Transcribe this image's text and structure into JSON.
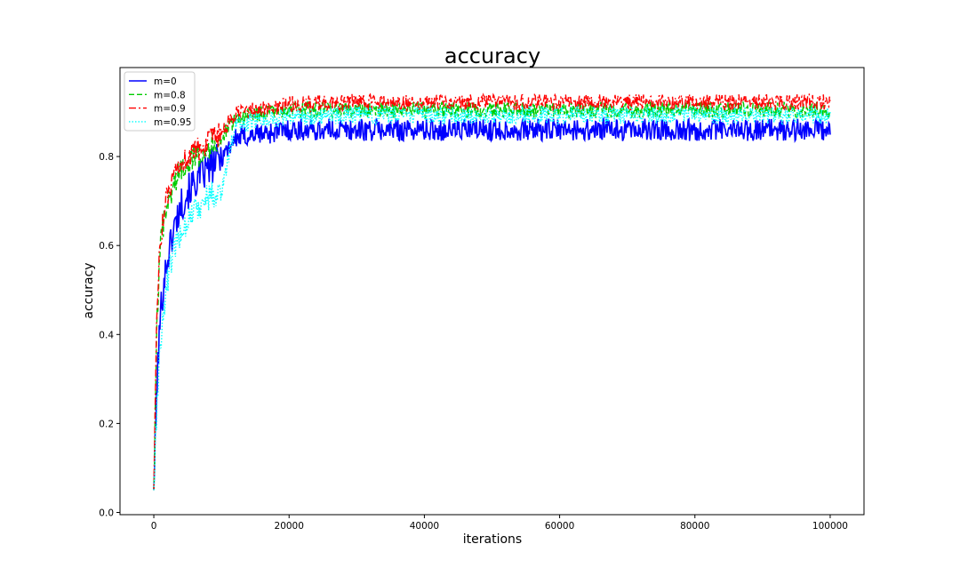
{
  "chart_data": {
    "type": "line",
    "title": "accuracy",
    "xlabel": "iterations",
    "ylabel": "accuracy",
    "xlim": [
      -5000,
      105000
    ],
    "ylim": [
      -0.005,
      1.0
    ],
    "xticks": [
      0,
      20000,
      40000,
      60000,
      80000,
      100000
    ],
    "xtick_labels": [
      "0",
      "20000",
      "40000",
      "60000",
      "80000",
      "100000"
    ],
    "yticks": [
      0.0,
      0.2,
      0.4,
      0.6,
      0.8
    ],
    "ytick_labels": [
      "0.0",
      "0.2",
      "0.4",
      "0.6",
      "0.8"
    ],
    "grid": false,
    "legend_position": "upper-left",
    "x": [
      0,
      500,
      1000,
      1500,
      2000,
      3000,
      4000,
      5000,
      6000,
      8000,
      10000,
      12000,
      15000,
      18000,
      20000,
      30000,
      40000,
      50000,
      60000,
      70000,
      80000,
      90000,
      100000
    ],
    "series": [
      {
        "name": "m=0",
        "color": "#0000ff",
        "dash": "",
        "width": 1.6,
        "noise": 0.025,
        "values": [
          0.05,
          0.3,
          0.45,
          0.52,
          0.57,
          0.64,
          0.69,
          0.72,
          0.74,
          0.77,
          0.8,
          0.84,
          0.85,
          0.855,
          0.86,
          0.86,
          0.86,
          0.86,
          0.86,
          0.86,
          0.86,
          0.86,
          0.86
        ]
      },
      {
        "name": "m=0.8",
        "color": "#00cc00",
        "dash": "6,3",
        "width": 1.4,
        "noise": 0.018,
        "values": [
          0.05,
          0.45,
          0.6,
          0.65,
          0.69,
          0.74,
          0.77,
          0.79,
          0.8,
          0.82,
          0.84,
          0.885,
          0.895,
          0.9,
          0.905,
          0.905,
          0.905,
          0.905,
          0.905,
          0.905,
          0.905,
          0.905,
          0.905
        ]
      },
      {
        "name": "m=0.9",
        "color": "#ff0000",
        "dash": "8,3,2,3",
        "width": 1.4,
        "noise": 0.018,
        "values": [
          0.05,
          0.48,
          0.62,
          0.67,
          0.71,
          0.75,
          0.78,
          0.8,
          0.81,
          0.83,
          0.85,
          0.895,
          0.905,
          0.91,
          0.918,
          0.922,
          0.922,
          0.922,
          0.922,
          0.922,
          0.922,
          0.922,
          0.922
        ]
      },
      {
        "name": "m=0.95",
        "color": "#00ffff",
        "dash": "1.5,2",
        "width": 1.4,
        "noise": 0.02,
        "values": [
          0.05,
          0.25,
          0.38,
          0.46,
          0.52,
          0.59,
          0.63,
          0.66,
          0.68,
          0.71,
          0.72,
          0.87,
          0.88,
          0.885,
          0.89,
          0.893,
          0.893,
          0.893,
          0.893,
          0.893,
          0.893,
          0.893,
          0.893
        ]
      }
    ]
  }
}
